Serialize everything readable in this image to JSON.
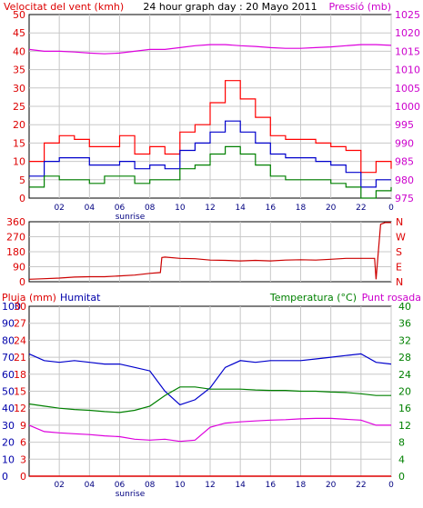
{
  "chart_data": [
    {
      "type": "line",
      "title": "24 hour graph day : 20 Mayo 2011",
      "ylabel": "Velocitat del vent (kmh)",
      "y2label": "Pressió (mb)",
      "x_ticks": [
        "02",
        "04",
        "06",
        "08",
        "10",
        "12",
        "14",
        "16",
        "18",
        "20",
        "22",
        "0"
      ],
      "sunrise_label": "sunrise",
      "ylim": [
        0,
        50
      ],
      "y_ticks": [
        "0",
        "5",
        "10",
        "15",
        "20",
        "25",
        "30",
        "35",
        "40",
        "45",
        "50"
      ],
      "y2lim": [
        975,
        1025
      ],
      "y2_ticks": [
        "975",
        "980",
        "985",
        "990",
        "995",
        "1000",
        "1005",
        "1010",
        "1015",
        "1020",
        "1025"
      ],
      "grid": true,
      "colors": {
        "gust": "#ff0000",
        "avg": "#0000cc",
        "min": "#008000",
        "pressure": "#dd00dd"
      },
      "x": [
        0,
        1,
        2,
        3,
        4,
        5,
        6,
        7,
        8,
        9,
        10,
        11,
        12,
        13,
        14,
        15,
        16,
        17,
        18,
        19,
        20,
        21,
        22,
        23,
        24
      ],
      "series": [
        {
          "key": "gust",
          "values": [
            10,
            15,
            17,
            16,
            14,
            14,
            17,
            12,
            14,
            12,
            18,
            20,
            26,
            32,
            27,
            22,
            17,
            16,
            16,
            15,
            14,
            13,
            7,
            10,
            8
          ]
        },
        {
          "key": "avg",
          "values": [
            6,
            10,
            11,
            11,
            9,
            9,
            10,
            8,
            9,
            8,
            13,
            15,
            18,
            21,
            18,
            15,
            12,
            11,
            11,
            10,
            9,
            7,
            3,
            5,
            5
          ]
        },
        {
          "key": "min",
          "values": [
            3,
            6,
            5,
            5,
            4,
            6,
            6,
            4,
            5,
            5,
            8,
            9,
            12,
            14,
            12,
            9,
            6,
            5,
            5,
            5,
            4,
            3,
            0,
            2,
            3
          ]
        },
        {
          "key": "pressure",
          "values": [
            1015.5,
            1015,
            1015,
            1014.8,
            1014.5,
            1014.3,
            1014.5,
            1015,
            1015.5,
            1015.5,
            1016,
            1016.5,
            1016.8,
            1016.8,
            1016.5,
            1016.3,
            1016,
            1015.8,
            1015.8,
            1016,
            1016.2,
            1016.5,
            1016.8,
            1016.8,
            1016.6
          ]
        }
      ]
    },
    {
      "type": "line",
      "ylim": [
        0,
        360
      ],
      "y_ticks": [
        "0",
        "90",
        "180",
        "270",
        "360"
      ],
      "compass": [
        "N",
        "E",
        "S",
        "W",
        "N"
      ],
      "grid": true,
      "colors": {
        "direction": "#cc0000"
      },
      "x": [
        0,
        1,
        2,
        3,
        4,
        5,
        6,
        7,
        8,
        8.7,
        8.8,
        9,
        10,
        11,
        12,
        13,
        14,
        15,
        16,
        17,
        18,
        19,
        20,
        21,
        22,
        22.9,
        23,
        23.3,
        23.6,
        24
      ],
      "series": [
        {
          "key": "direction",
          "values": [
            15,
            18,
            22,
            28,
            30,
            30,
            35,
            40,
            50,
            55,
            145,
            148,
            140,
            138,
            130,
            128,
            125,
            128,
            125,
            130,
            132,
            130,
            135,
            140,
            140,
            140,
            15,
            345,
            355,
            355
          ]
        }
      ]
    },
    {
      "type": "line",
      "legend": [
        "Pluja (mm)",
        "Humitat",
        "Temperatura (°C)",
        "Punt rosada"
      ],
      "ylim": [
        0,
        30
      ],
      "y_ticks_left": [
        "0",
        "3",
        "6",
        "9",
        "12",
        "15",
        "18",
        "21",
        "24",
        "27",
        "30"
      ],
      "y_ticks_humidity": [
        "0",
        "10",
        "20",
        "30",
        "40",
        "50",
        "60",
        "70",
        "80",
        "90",
        "100"
      ],
      "y2lim": [
        0,
        40
      ],
      "y2_ticks": [
        "0",
        "4",
        "8",
        "12",
        "16",
        "20",
        "24",
        "28",
        "32",
        "36",
        "40"
      ],
      "grid": true,
      "colors": {
        "rain": "#dd0000",
        "humidity": "#0000cc",
        "temperature": "#008000",
        "dewpoint": "#dd00dd"
      },
      "x": [
        0,
        1,
        2,
        3,
        4,
        5,
        6,
        7,
        8,
        9,
        10,
        11,
        12,
        13,
        14,
        15,
        16,
        17,
        18,
        19,
        20,
        21,
        22,
        23,
        24
      ],
      "series": [
        {
          "key": "rain",
          "values": [
            0,
            0,
            0,
            0,
            0,
            0,
            0,
            0,
            0,
            0,
            0,
            0,
            0,
            0,
            0,
            0,
            0,
            0,
            0,
            0,
            0,
            0,
            0,
            0,
            0
          ]
        },
        {
          "key": "humidity",
          "values": [
            72,
            68,
            67,
            68,
            67,
            66,
            66,
            64,
            62,
            50,
            42,
            45,
            52,
            64,
            68,
            67,
            68,
            68,
            68,
            69,
            70,
            71,
            72,
            67,
            66
          ]
        },
        {
          "key": "temperature",
          "values": [
            17,
            16.5,
            16,
            15.7,
            15.5,
            15.2,
            15,
            15.5,
            16.5,
            19,
            21,
            21,
            20.5,
            20.5,
            20.5,
            20.3,
            20.2,
            20.2,
            20,
            20,
            19.8,
            19.7,
            19.4,
            19,
            19
          ]
        },
        {
          "key": "dewpoint",
          "values": [
            12,
            10.5,
            10.2,
            10,
            9.8,
            9.5,
            9.3,
            8.7,
            8.5,
            8.7,
            8.2,
            8.5,
            11.5,
            12.5,
            12.8,
            13,
            13.2,
            13.3,
            13.5,
            13.6,
            13.6,
            13.4,
            13.2,
            12,
            12
          ]
        }
      ]
    }
  ]
}
